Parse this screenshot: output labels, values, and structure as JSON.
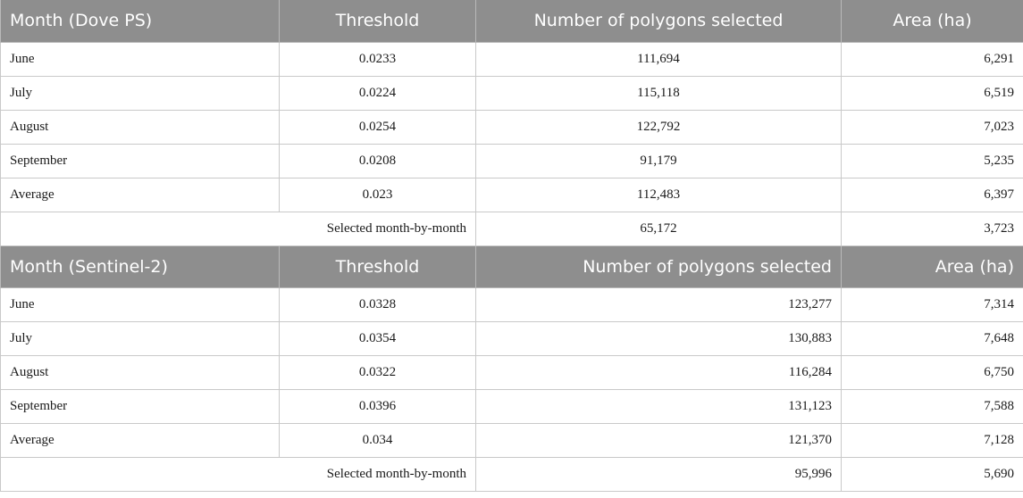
{
  "dove": {
    "headers": [
      "Month (Dove PS)",
      "Threshold",
      "Number of polygons selected",
      "Area (ha)"
    ],
    "rows": [
      [
        "June",
        "0.0233",
        "111,694",
        "6,291"
      ],
      [
        "July",
        "0.0224",
        "115,118",
        "6,519"
      ],
      [
        "August",
        "0.0254",
        "122,792",
        "7,023"
      ],
      [
        "September",
        "0.0208",
        "91,179",
        "5,235"
      ],
      [
        "Average",
        "0.023",
        "112,483",
        "6,397"
      ]
    ],
    "summary": {
      "label": "Selected month-by-month",
      "polygons": "65,172",
      "area": "3,723"
    }
  },
  "sentinel": {
    "headers": [
      "Month (Sentinel-2)",
      "Threshold",
      "Number of polygons selected",
      "Area (ha)"
    ],
    "rows": [
      [
        "June",
        "0.0328",
        "123,277",
        "7,314"
      ],
      [
        "July",
        "0.0354",
        "130,883",
        "7,648"
      ],
      [
        "August",
        "0.0322",
        "116,284",
        "6,750"
      ],
      [
        "September",
        "0.0396",
        "131,123",
        "7,588"
      ],
      [
        "Average",
        "0.034",
        "121,370",
        "7,128"
      ]
    ],
    "summary": {
      "label": "Selected month-by-month",
      "polygons": "95,996",
      "area": "5,690"
    }
  }
}
